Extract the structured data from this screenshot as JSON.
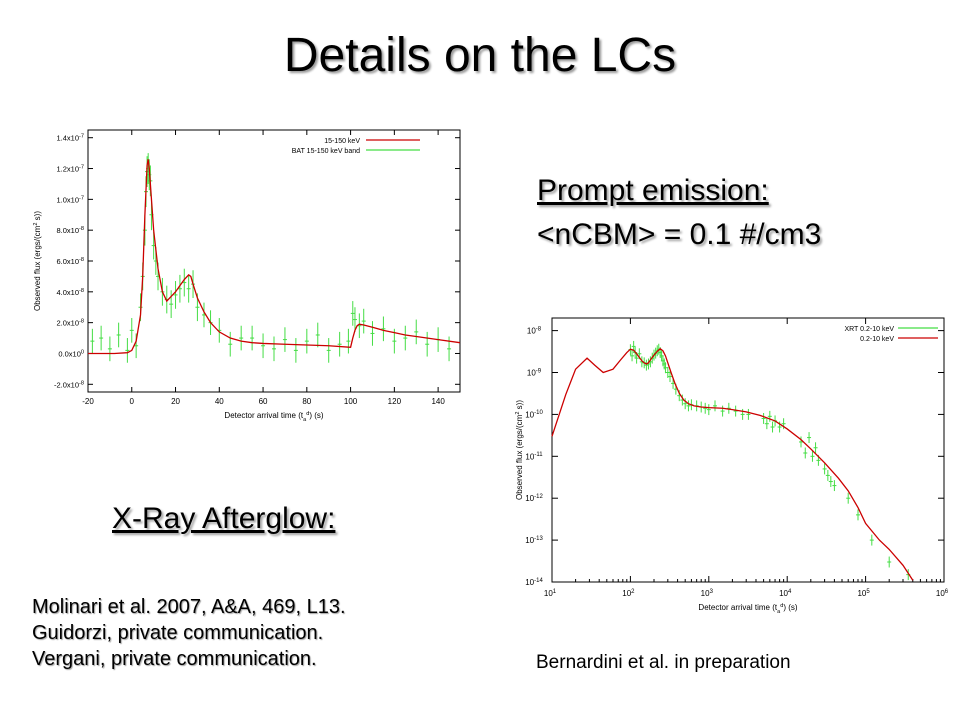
{
  "slide": {
    "title": "Details on the LCs",
    "prompt_heading": "Prompt emission:",
    "prompt_density": "<nCBM> = 0.1 #/cm3",
    "xray_heading": "X-Ray Afterglow:",
    "references": [
      "Molinari et al. 2007, A&A, 469, L13.",
      "Guidorzi, private communication.",
      "Vergani, private communication."
    ],
    "credit": "Bernardini et al. in preparation"
  },
  "colors": {
    "model": "#cc0000",
    "data": "#44dd44"
  },
  "chart_data": [
    {
      "type": "line",
      "title": "",
      "xlabel": "Detector arrival time (t_a^d) (s)",
      "ylabel": "Observed flux (ergs/(cm^2 s))",
      "xlim": [
        -20,
        150
      ],
      "ylim": [
        -2.5e-08,
        1.45e-07
      ],
      "xticks": [
        -20,
        0,
        20,
        40,
        60,
        80,
        100,
        120,
        140
      ],
      "xtick_labels": [
        "-20",
        "0",
        "20",
        "40",
        "60",
        "80",
        "100",
        "120",
        "140"
      ],
      "yticks": [
        -2e-08,
        0,
        2e-08,
        4e-08,
        6e-08,
        8e-08,
        1e-07,
        1.2e-07,
        1.4e-07
      ],
      "ytick_labels": [
        "-2.0x10^-8",
        "0.0x10^0",
        "2.0x10^-8",
        "4.0x10^-8",
        "6.0x10^-8",
        "8.0x10^-8",
        "1.0x10^-7",
        "1.2x10^-7",
        "1.4x10^-7"
      ],
      "legend_position": "top-right",
      "series": [
        {
          "name": "15-150 keV",
          "style": "line",
          "x": [
            -20,
            -8,
            -2,
            0,
            2,
            4,
            5,
            6,
            7,
            7.5,
            8,
            9,
            10,
            12,
            14,
            16,
            18,
            20,
            22,
            24,
            26,
            27,
            28,
            30,
            33,
            36,
            40,
            45,
            50,
            55,
            60,
            70,
            80,
            90,
            100,
            101,
            102,
            103,
            104,
            106,
            110,
            115,
            120,
            125,
            130,
            140,
            150
          ],
          "y": [
            0,
            0,
            5e-10,
            2e-09,
            8e-09,
            2.5e-08,
            5e-08,
            9e-08,
            1.22e-07,
            1.26e-07,
            1.2e-07,
            1e-07,
            8e-08,
            5.5e-08,
            4e-08,
            3.4e-08,
            3.7e-08,
            4e-08,
            4.4e-08,
            4.8e-08,
            5.1e-08,
            5e-08,
            4.5e-08,
            3.6e-08,
            2.7e-08,
            2e-08,
            1.4e-08,
            1e-08,
            8e-09,
            7e-09,
            6.5e-09,
            6e-09,
            5.5e-09,
            5e-09,
            4e-09,
            1e-08,
            1.5e-08,
            1.8e-08,
            1.9e-08,
            1.85e-08,
            1.7e-08,
            1.5e-08,
            1.35e-08,
            1.2e-08,
            1.1e-08,
            9e-09,
            7e-09
          ]
        },
        {
          "name": "BAT 15-150 keV band",
          "style": "points-with-errorbars",
          "x": [
            -18,
            -14,
            -10,
            -6,
            -2,
            0,
            2,
            4,
            5,
            6,
            6.5,
            7,
            7.5,
            8,
            8.5,
            9,
            10,
            11,
            12,
            14,
            16,
            18,
            20,
            22,
            24,
            26,
            28,
            30,
            33,
            36,
            40,
            45,
            50,
            55,
            60,
            65,
            70,
            75,
            80,
            85,
            90,
            95,
            99,
            101,
            102,
            104,
            106,
            110,
            115,
            120,
            125,
            130,
            135,
            140,
            145
          ],
          "y": [
            8e-09,
            1e-08,
            3e-09,
            1.2e-08,
            2e-09,
            1.5e-08,
            5e-09,
            3e-08,
            5e-08,
            8e-08,
            1.05e-07,
            1.18e-07,
            1.2e-07,
            1.16e-07,
            1.12e-07,
            9e-08,
            7e-08,
            6e-08,
            5e-08,
            4e-08,
            3.5e-08,
            3.2e-08,
            3.8e-08,
            4.2e-08,
            4.6e-08,
            4.2e-08,
            4.5e-08,
            3e-08,
            2.5e-08,
            2e-08,
            1.5e-08,
            6e-09,
            1e-08,
            1e-08,
            5e-09,
            3e-09,
            9e-09,
            2e-09,
            8e-09,
            1.2e-08,
            2e-09,
            6e-09,
            8e-09,
            2.6e-08,
            2.2e-08,
            1.8e-08,
            2.1e-08,
            1.3e-08,
            1.6e-08,
            8e-09,
            1e-08,
            1.4e-08,
            6e-09,
            9e-09,
            3e-09
          ],
          "yerr": [
            8e-09,
            8e-09,
            8e-09,
            8e-09,
            8e-09,
            8e-09,
            8e-09,
            9e-09,
            9e-09,
            1e-08,
            1e-08,
            1e-08,
            1e-08,
            1e-08,
            1e-08,
            1e-08,
            9e-09,
            9e-09,
            9e-09,
            9e-09,
            9e-09,
            9e-09,
            9e-09,
            9e-09,
            9e-09,
            9e-09,
            9e-09,
            9e-09,
            8e-09,
            8e-09,
            8e-09,
            8e-09,
            8e-09,
            8e-09,
            8e-09,
            8e-09,
            8e-09,
            8e-09,
            8e-09,
            8e-09,
            8e-09,
            8e-09,
            8e-09,
            8e-09,
            8e-09,
            8e-09,
            8e-09,
            8e-09,
            8e-09,
            8e-09,
            8e-09,
            8e-09,
            8e-09,
            8e-09,
            8e-09
          ]
        }
      ]
    },
    {
      "type": "line",
      "title": "",
      "xlabel": "Detector arrival time (t_a^d) (s)",
      "ylabel": "Observed flux (ergs/(cm^2 s))",
      "xscale": "log",
      "yscale": "log",
      "xlim": [
        10,
        1000000
      ],
      "ylim": [
        1e-14,
        2e-08
      ],
      "xtick_exponents": [
        1,
        2,
        3,
        4,
        5,
        6
      ],
      "ytick_exponents": [
        -14,
        -13,
        -12,
        -11,
        -10,
        -9,
        -8
      ],
      "legend_position": "top-right",
      "series": [
        {
          "name": "XRT 0.2-10 keV",
          "style": "points-with-errorbars",
          "x": [
            100,
            105,
            110,
            115,
            120,
            130,
            140,
            150,
            160,
            170,
            180,
            190,
            200,
            210,
            220,
            230,
            240,
            250,
            260,
            270,
            280,
            300,
            320,
            350,
            380,
            420,
            460,
            500,
            550,
            600,
            700,
            800,
            900,
            1000,
            1200,
            1500,
            1800,
            2200,
            2700,
            3200,
            5000,
            5500,
            6000,
            6500,
            7000,
            8000,
            9000,
            15000,
            17000,
            19000,
            21000,
            23000,
            25000,
            30000,
            33000,
            36000,
            40000,
            60000,
            80000,
            120000,
            200000,
            350000
          ],
          "y": [
            3.5e-09,
            2.5e-09,
            4.2e-09,
            3e-09,
            2.2e-09,
            2.8e-09,
            1.8e-09,
            1.7e-09,
            1.5e-09,
            1.6e-09,
            1.8e-09,
            2.2e-09,
            2.6e-09,
            2.9e-09,
            3.3e-09,
            3.6e-09,
            3e-09,
            2.5e-09,
            1.9e-09,
            1.6e-09,
            1.3e-09,
            1e-09,
            8e-10,
            5.5e-10,
            4e-10,
            2.8e-10,
            2.2e-10,
            1.8e-10,
            1.6e-10,
            1.7e-10,
            1.6e-10,
            1.5e-10,
            1.4e-10,
            1.3e-10,
            1.6e-10,
            1.2e-10,
            1.4e-10,
            1.2e-10,
            1e-10,
            1e-10,
            8e-11,
            6e-11,
            9e-11,
            5e-11,
            7e-11,
            5e-11,
            6e-11,
            2.2e-11,
            1.2e-11,
            2.8e-11,
            1e-11,
            1.6e-11,
            8e-12,
            5e-12,
            3.5e-12,
            2.5e-12,
            2e-12,
            1e-12,
            4e-13,
            1e-13,
            3e-14,
            1.5e-14
          ],
          "yerr_factor": 1.35
        },
        {
          "name": "0.2-10 keV",
          "style": "line",
          "x": [
            10,
            15,
            20,
            28,
            35,
            45,
            60,
            75,
            90,
            100,
            110,
            120,
            130,
            140,
            150,
            160,
            170,
            180,
            200,
            220,
            240,
            260,
            280,
            300,
            330,
            370,
            420,
            480,
            550,
            650,
            800,
            1000,
            1500,
            2000,
            3000,
            4500,
            7000,
            10000,
            15000,
            20000,
            30000,
            45000,
            60000,
            80000,
            100000,
            150000,
            200000,
            300000,
            400000
          ],
          "y": [
            3e-11,
            3e-10,
            1.2e-09,
            2.2e-09,
            1.5e-09,
            1e-09,
            1.2e-09,
            2e-09,
            3e-09,
            3.6e-09,
            3.4e-09,
            2.8e-09,
            2.3e-09,
            1.9e-09,
            1.7e-09,
            1.6e-09,
            1.7e-09,
            2e-09,
            2.6e-09,
            3.2e-09,
            3.7e-09,
            3.3e-09,
            2.5e-09,
            1.7e-09,
            1e-09,
            5.5e-10,
            3.2e-10,
            2.2e-10,
            1.8e-10,
            1.6e-10,
            1.5e-10,
            1.45e-10,
            1.4e-10,
            1.3e-10,
            1.15e-10,
            9.5e-11,
            7e-11,
            4.5e-11,
            2.5e-11,
            1.5e-11,
            7e-12,
            3e-12,
            1.5e-12,
            6e-13,
            2.5e-13,
            1e-13,
            6e-14,
            2.5e-14,
            1.1e-14
          ]
        }
      ]
    }
  ]
}
